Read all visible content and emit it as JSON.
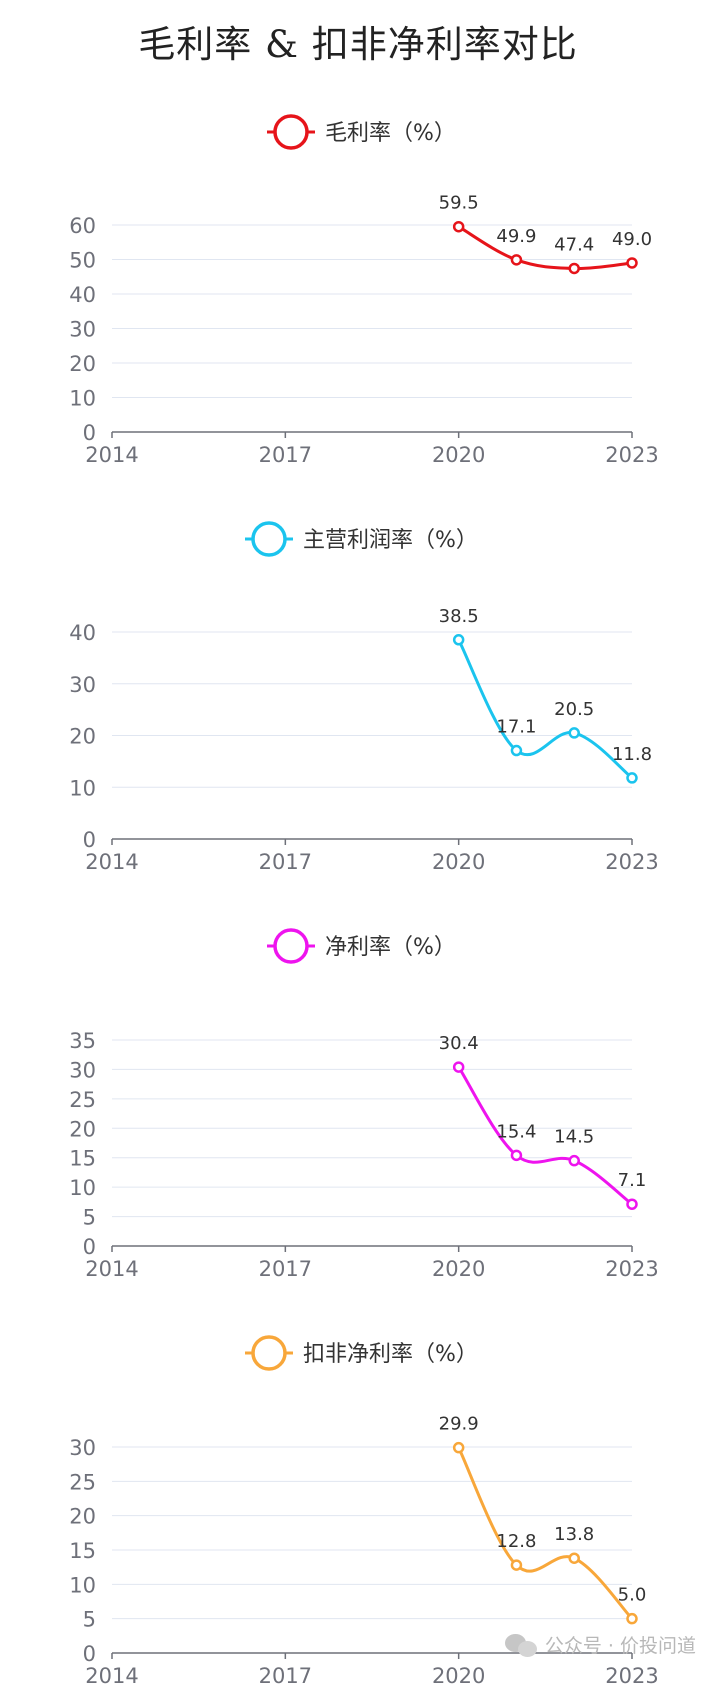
{
  "title": "毛利率 & 扣非净利率对比",
  "watermark": "公众号 · 价投问道",
  "chart_data": [
    {
      "type": "line",
      "legend": "毛利率（%）",
      "color": "#e6141a",
      "x_ticks": [
        "2014",
        "2017",
        "2020",
        "2023"
      ],
      "xlim": [
        2014,
        2023
      ],
      "ylim": [
        0,
        60
      ],
      "y_ticks": [
        0,
        10,
        20,
        30,
        40,
        50,
        60
      ],
      "x": [
        2020,
        2021,
        2022,
        2023
      ],
      "values": [
        59.5,
        49.9,
        47.4,
        49.0
      ],
      "labels": [
        "59.5",
        "49.9",
        "47.4",
        "49.0"
      ],
      "grid": true,
      "legend_position": "top-center"
    },
    {
      "type": "line",
      "legend": "主营利润率（%）",
      "color": "#1bc4ee",
      "x_ticks": [
        "2014",
        "2017",
        "2020",
        "2023"
      ],
      "xlim": [
        2014,
        2023
      ],
      "ylim": [
        0,
        40
      ],
      "y_ticks": [
        0,
        10,
        20,
        30,
        40
      ],
      "x": [
        2020,
        2021,
        2022,
        2023
      ],
      "values": [
        38.5,
        17.1,
        20.5,
        11.8
      ],
      "labels": [
        "38.5",
        "17.1",
        "20.5",
        "11.8"
      ],
      "grid": true,
      "legend_position": "top-center"
    },
    {
      "type": "line",
      "legend": "净利率（%）",
      "color": "#ee14ee",
      "x_ticks": [
        "2014",
        "2017",
        "2020",
        "2023"
      ],
      "xlim": [
        2014,
        2023
      ],
      "ylim": [
        0,
        35
      ],
      "y_ticks": [
        0,
        5,
        10,
        15,
        20,
        25,
        30,
        35
      ],
      "x": [
        2020,
        2021,
        2022,
        2023
      ],
      "values": [
        30.4,
        15.4,
        14.5,
        7.1
      ],
      "labels": [
        "30.4",
        "15.4",
        "14.5",
        "7.1"
      ],
      "grid": true,
      "legend_position": "top-center"
    },
    {
      "type": "line",
      "legend": "扣非净利率（%）",
      "color": "#f8a73a",
      "x_ticks": [
        "2014",
        "2017",
        "2020",
        "2023"
      ],
      "xlim": [
        2014,
        2023
      ],
      "ylim": [
        0,
        30
      ],
      "y_ticks": [
        0,
        5,
        10,
        15,
        20,
        25,
        30
      ],
      "x": [
        2020,
        2021,
        2022,
        2023
      ],
      "values": [
        29.9,
        12.8,
        13.8,
        5.0
      ],
      "labels": [
        "29.9",
        "12.8",
        "13.8",
        "5.0"
      ],
      "grid": true,
      "legend_position": "top-center"
    }
  ]
}
